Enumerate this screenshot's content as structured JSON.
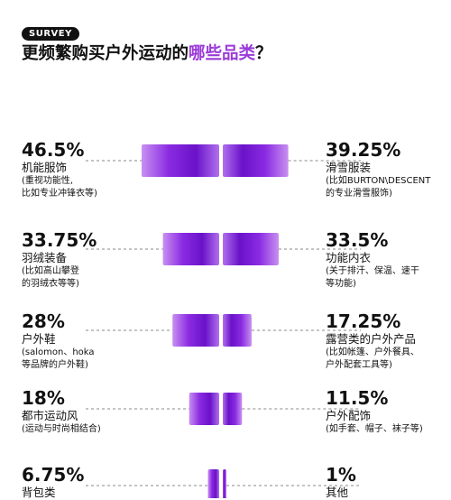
{
  "badge": "SURVEY",
  "title": {
    "prefix": "更频繁购买户外运动的",
    "highlight": "哪些品类",
    "suffix": "？"
  },
  "colors": {
    "accent": "#9a3bd9",
    "bar_dark": "#6a12c9",
    "bar_mid": "#9a3be0",
    "bar_light": "#c890f0",
    "dash": "#888888"
  },
  "chart_data": {
    "type": "bar",
    "layout": "butterfly",
    "rows": [
      {
        "left": {
          "value": 46.5,
          "label": "46.5%",
          "name": "机能服饰",
          "note": "(重视功能性,\n比如专业冲锋衣等)"
        },
        "right": {
          "value": 39.25,
          "label": "39.25%",
          "name": "滑雪服装",
          "note": "(比如BURTON\\DESCENT\n的专业滑雪服饰)"
        }
      },
      {
        "left": {
          "value": 33.75,
          "label": "33.75%",
          "name": "羽绒装备",
          "note": "(比如高山攀登\n的羽绒衣等等)"
        },
        "right": {
          "value": 33.5,
          "label": "33.5%",
          "name": "功能内衣",
          "note": "(关于排汗、保温、速干\n等功能)"
        }
      },
      {
        "left": {
          "value": 28,
          "label": "28%",
          "name": "户外鞋",
          "note": "(salomon、hoka\n等品牌的户外鞋)"
        },
        "right": {
          "value": 17.25,
          "label": "17.25%",
          "name": "露营类的户外产品",
          "note": "(比如帐篷、户外餐具、\n户外配套工具等)"
        }
      },
      {
        "left": {
          "value": 18,
          "label": "18%",
          "name": "都市运动风",
          "note": "(运动与时尚相结合)"
        },
        "right": {
          "value": 11.5,
          "label": "11.5%",
          "name": "户外配饰",
          "note": "(如手套、帽子、袜子等)"
        }
      },
      {
        "left": {
          "value": 6.75,
          "label": "6.75%",
          "name": "背包类",
          "note": ""
        },
        "right": {
          "value": 1,
          "label": "1%",
          "name": "其他",
          "note": ""
        }
      }
    ]
  }
}
